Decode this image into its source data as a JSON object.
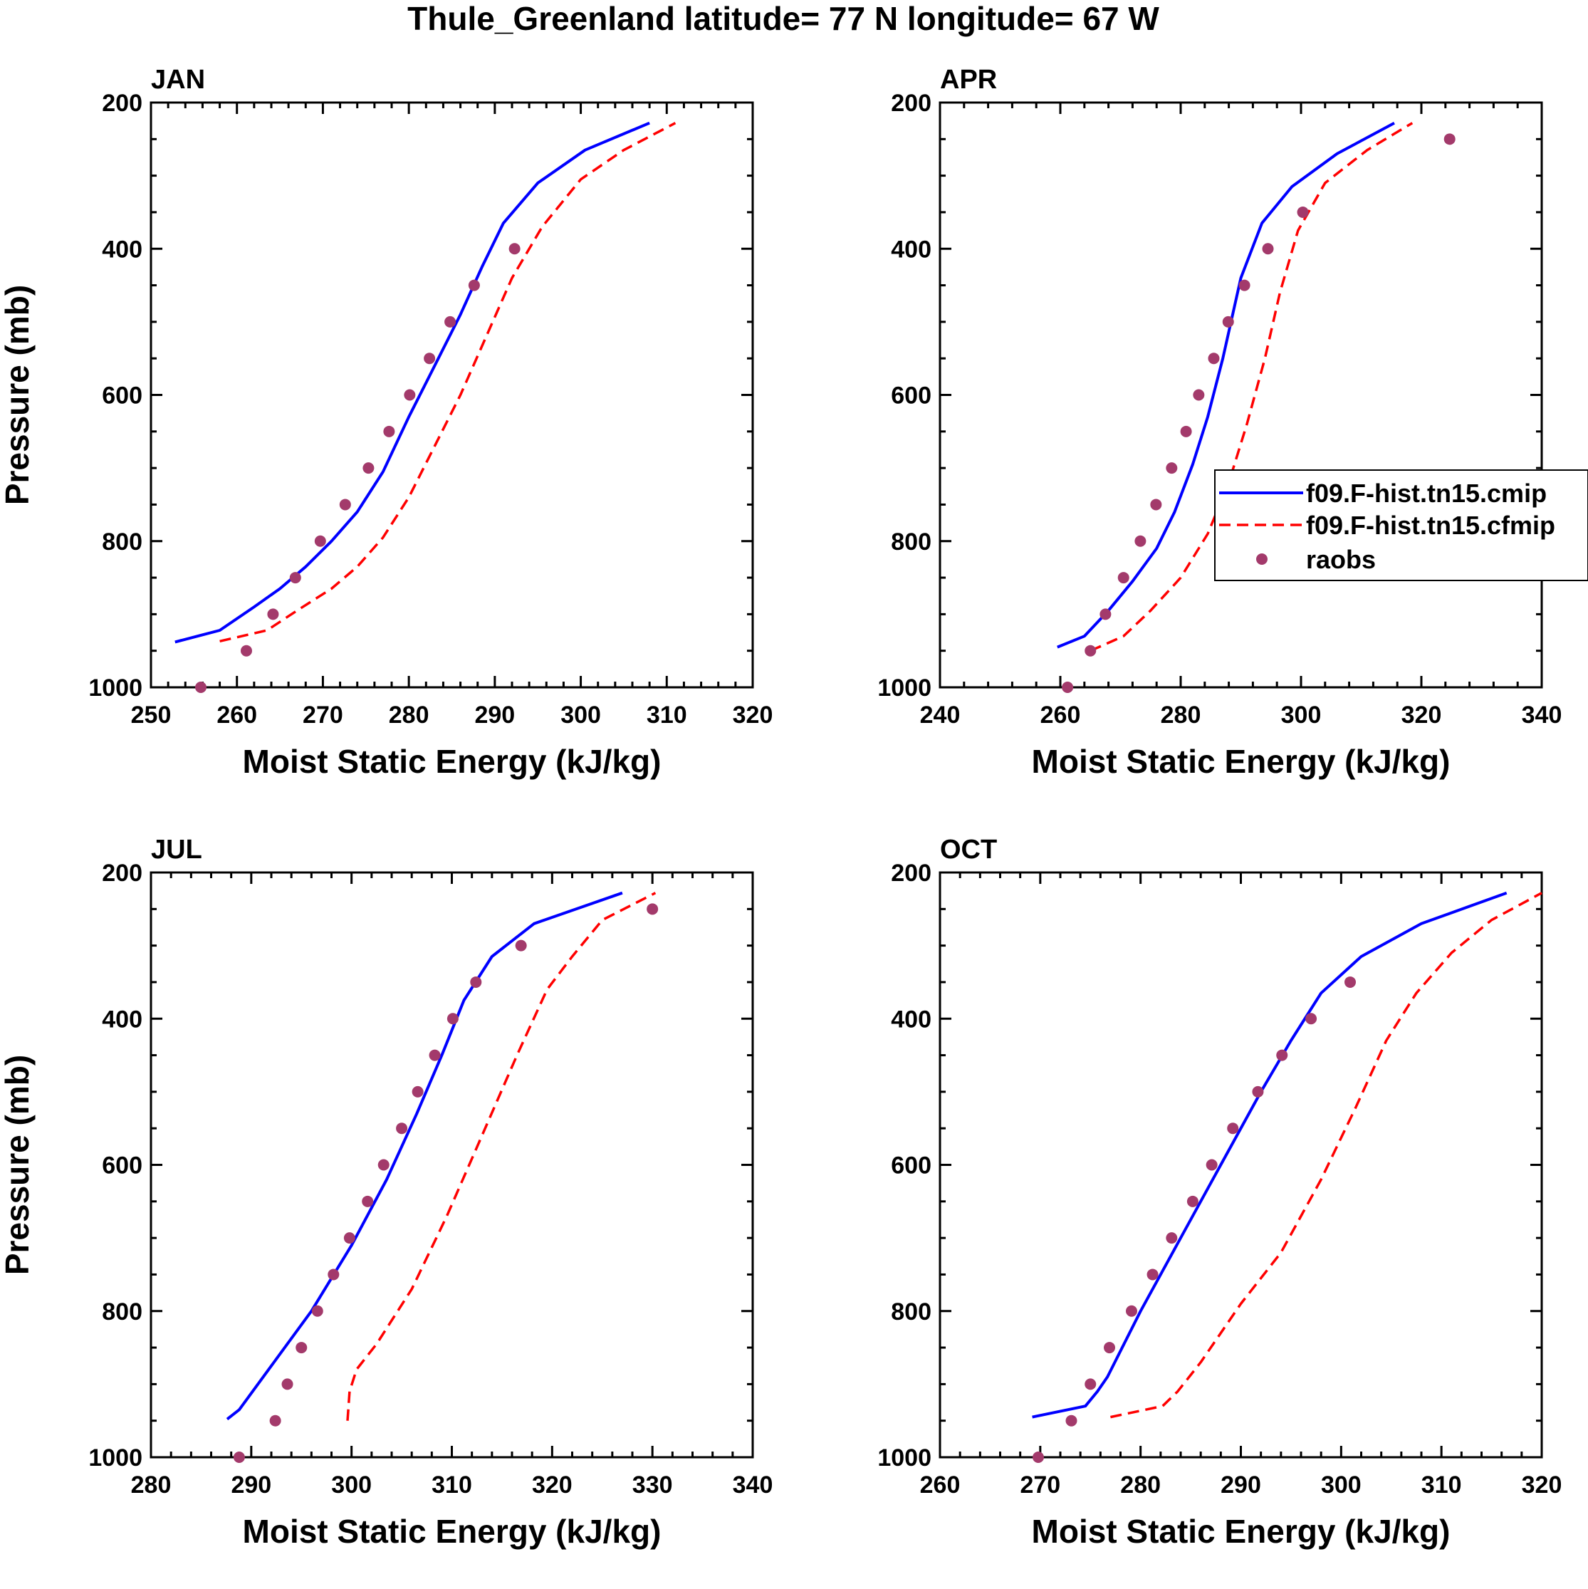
{
  "title": "Thule_Greenland  latitude= 77 N longitude= 67 W",
  "legend": {
    "entries": [
      {
        "label": "f09.F-hist.tn15.cmip",
        "color": "#0000ff",
        "style": "solid"
      },
      {
        "label": "f09.F-hist.tn15.cfmip",
        "color": "#ff0000",
        "style": "dashed"
      },
      {
        "label": "raobs",
        "color": "#a33a6b",
        "style": "marker"
      }
    ]
  },
  "chart_data": [
    {
      "type": "line",
      "panel": "JAN",
      "xlabel": "Moist Static Energy (kJ/kg)",
      "ylabel": "Pressure (mb)",
      "xlim": [
        250,
        320
      ],
      "xticks": [
        250,
        260,
        270,
        280,
        290,
        300,
        310,
        320
      ],
      "ylim": [
        1000,
        200
      ],
      "yticks": [
        200,
        400,
        600,
        800,
        1000
      ],
      "series": [
        {
          "name": "f09.F-hist.tn15.cmip",
          "style": "solid",
          "x": [
            252.8,
            258,
            262,
            265,
            268,
            271,
            274,
            277,
            280,
            283,
            286,
            288.5,
            291,
            295,
            300.5,
            308
          ],
          "y": [
            938,
            922,
            890,
            865,
            835,
            800,
            760,
            705,
            630,
            560,
            490,
            425,
            365,
            310,
            265,
            228
          ]
        },
        {
          "name": "f09.F-hist.tn15.cfmip",
          "style": "dashed",
          "x": [
            258,
            263.5,
            267,
            271,
            274,
            277,
            280,
            283,
            286,
            289,
            292,
            295.5,
            300,
            305,
            311
          ],
          "y": [
            937,
            922,
            895,
            865,
            835,
            795,
            740,
            670,
            600,
            520,
            440,
            370,
            305,
            265,
            228
          ]
        },
        {
          "name": "raobs",
          "style": "marker",
          "x": [
            255.8,
            261.1,
            264.2,
            266.8,
            269.7,
            272.6,
            275.3,
            277.7,
            280.1,
            282.4,
            284.8,
            287.6,
            292.3
          ],
          "y": [
            1000,
            950,
            900,
            850,
            800,
            750,
            700,
            650,
            600,
            550,
            500,
            450,
            400
          ]
        }
      ]
    },
    {
      "type": "line",
      "panel": "APR",
      "xlabel": "Moist Static Energy (kJ/kg)",
      "ylabel": "",
      "xlim": [
        240,
        340
      ],
      "xticks": [
        240,
        260,
        280,
        300,
        320,
        340
      ],
      "ylim": [
        1000,
        200
      ],
      "yticks": [
        200,
        400,
        600,
        800,
        1000
      ],
      "series": [
        {
          "name": "f09.F-hist.tn15.cmip",
          "style": "solid",
          "x": [
            259.5,
            264,
            268,
            272,
            276,
            279,
            282,
            284.5,
            287,
            290,
            293.5,
            298.5,
            306,
            315.5
          ],
          "y": [
            945,
            930,
            895,
            855,
            810,
            760,
            695,
            630,
            550,
            440,
            365,
            315,
            270,
            228
          ]
        },
        {
          "name": "f09.F-hist.tn15.cfmip",
          "style": "dashed",
          "x": [
            265,
            270.5,
            275,
            280,
            284.5,
            288,
            291,
            294,
            296.5,
            299.5,
            304,
            311,
            318.5
          ],
          "y": [
            950,
            930,
            895,
            850,
            790,
            720,
            640,
            550,
            460,
            375,
            310,
            265,
            228
          ]
        },
        {
          "name": "raobs",
          "style": "marker",
          "x": [
            261.2,
            265.0,
            267.5,
            270.5,
            273.3,
            275.9,
            278.5,
            280.9,
            283.0,
            285.5,
            287.9,
            290.6,
            294.5,
            300.3,
            324.7
          ],
          "y": [
            1000,
            950,
            900,
            850,
            800,
            750,
            700,
            650,
            600,
            550,
            500,
            450,
            400,
            350,
            250
          ]
        }
      ]
    },
    {
      "type": "line",
      "panel": "JUL",
      "xlabel": "Moist Static Energy (kJ/kg)",
      "ylabel": "Pressure (mb)",
      "xlim": [
        280,
        340
      ],
      "xticks": [
        280,
        290,
        300,
        310,
        320,
        330,
        340
      ],
      "ylim": [
        1000,
        200
      ],
      "yticks": [
        200,
        400,
        600,
        800,
        1000
      ],
      "series": [
        {
          "name": "f09.F-hist.tn15.cmip",
          "style": "solid",
          "x": [
            287.6,
            288.8,
            292,
            296,
            300,
            303.5,
            306.5,
            309,
            311.2,
            314,
            318.2,
            327
          ],
          "y": [
            948,
            935,
            875,
            800,
            710,
            620,
            530,
            450,
            375,
            315,
            270,
            228
          ]
        },
        {
          "name": "f09.F-hist.tn15.cfmip",
          "style": "dashed",
          "x": [
            299.6,
            299.8,
            300.5,
            302.5,
            306,
            309.5,
            313,
            316.5,
            319.5,
            322,
            325,
            330.3
          ],
          "y": [
            950,
            910,
            880,
            845,
            770,
            670,
            560,
            450,
            360,
            315,
            265,
            228
          ]
        },
        {
          "name": "raobs",
          "style": "marker",
          "x": [
            288.8,
            292.4,
            293.6,
            295.0,
            296.6,
            298.2,
            299.8,
            301.6,
            303.2,
            305.0,
            306.6,
            308.3,
            310.1,
            312.4,
            316.9,
            330.0
          ],
          "y": [
            1000,
            950,
            900,
            850,
            800,
            750,
            700,
            650,
            600,
            550,
            500,
            450,
            400,
            350,
            300,
            250
          ]
        }
      ]
    },
    {
      "type": "line",
      "panel": "OCT",
      "xlabel": "Moist Static Energy (kJ/kg)",
      "ylabel": "",
      "xlim": [
        260,
        320
      ],
      "xticks": [
        260,
        270,
        280,
        290,
        300,
        310,
        320
      ],
      "ylim": [
        1000,
        200
      ],
      "yticks": [
        200,
        400,
        600,
        800,
        1000
      ],
      "series": [
        {
          "name": "f09.F-hist.tn15.cmip",
          "style": "solid",
          "x": [
            269.2,
            274.5,
            275.7,
            276.7,
            280,
            284,
            288,
            292,
            295,
            298,
            302,
            308,
            316.5
          ],
          "y": [
            945,
            930,
            910,
            890,
            800,
            700,
            600,
            500,
            430,
            365,
            315,
            270,
            228
          ]
        },
        {
          "name": "f09.F-hist.tn15.cfmip",
          "style": "dashed",
          "x": [
            277,
            282.2,
            283.7,
            286,
            290,
            294,
            298,
            301.5,
            304.5,
            307.5,
            311,
            315,
            320
          ],
          "y": [
            945,
            930,
            910,
            870,
            790,
            720,
            620,
            520,
            430,
            365,
            310,
            265,
            228
          ]
        },
        {
          "name": "raobs",
          "style": "marker",
          "x": [
            269.8,
            273.1,
            275.0,
            276.9,
            279.1,
            281.2,
            283.1,
            285.2,
            287.1,
            289.2,
            291.7,
            294.1,
            297.0,
            300.9
          ],
          "y": [
            1000,
            950,
            900,
            850,
            800,
            750,
            700,
            650,
            600,
            550,
            500,
            450,
            400,
            350
          ]
        }
      ]
    }
  ]
}
